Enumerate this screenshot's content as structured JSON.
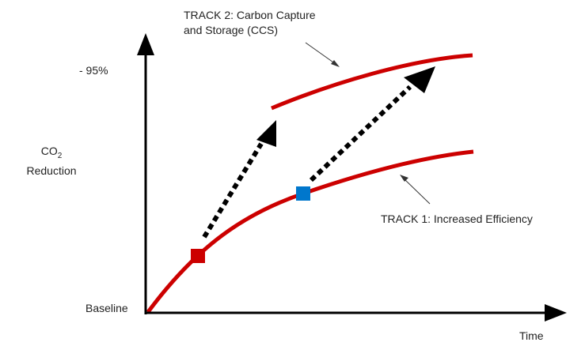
{
  "labels": {
    "track2_line1": "TRACK 2: Carbon Capture",
    "track2_line2": "and Storage (CCS)",
    "track1": "TRACK 1: Increased Efficiency",
    "y_top": "- 95%",
    "y_axis_main": "CO",
    "y_axis_sub": "2",
    "y_axis_line2": "Reduction",
    "baseline": "Baseline",
    "x_axis": "Time"
  },
  "colors": {
    "track_line": "#cc0000",
    "marker_track1_start": "#cc0000",
    "marker_track1_mid": "#0077cc",
    "axis": "#000000",
    "arrow": "#000000",
    "pointer": "#333333"
  },
  "icons": {
    "marker_start": "red-square",
    "marker_mid": "blue-square",
    "transition_arrow": "dashed-arrow"
  }
}
